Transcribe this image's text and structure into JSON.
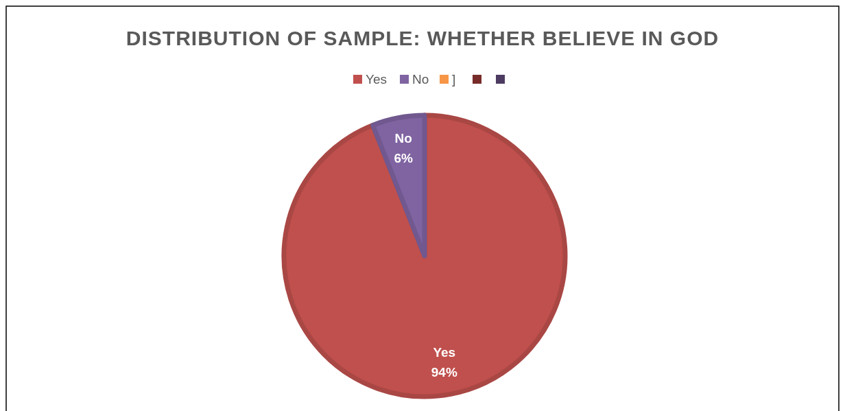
{
  "chart_data": {
    "type": "pie",
    "title": "DISTRIBUTION OF SAMPLE: WHETHER BELIEVE IN GOD",
    "categories": [
      "Yes",
      "No",
      "]",
      null,
      null
    ],
    "values": [
      94,
      6,
      0,
      0,
      0
    ],
    "colors": [
      "#c0504d",
      "#8064a2",
      "#f79646",
      "#772c2a",
      "#4d3b62"
    ],
    "value_labels": [
      "94%",
      "6%",
      null,
      null,
      null
    ],
    "legend": "top"
  }
}
